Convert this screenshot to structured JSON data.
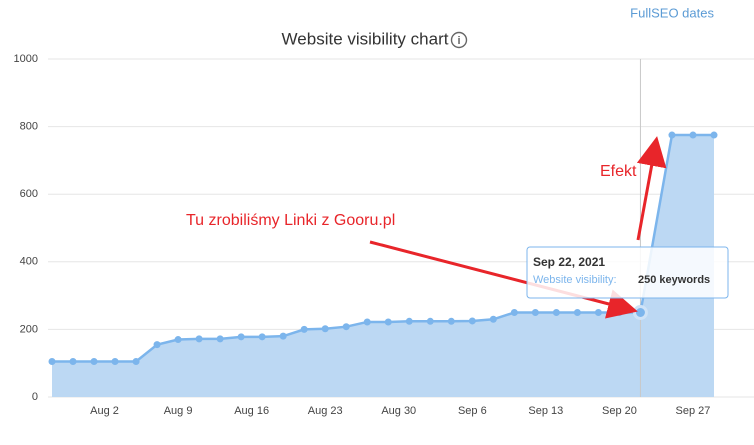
{
  "chart_data": {
    "type": "area",
    "title": "Website visibility chart",
    "link": "FullSEO dates",
    "x": [
      "Jul 28",
      "Jul 30",
      "Aug 1",
      "Aug 3",
      "Aug 5",
      "Aug 7",
      "Aug 9",
      "Aug 11",
      "Aug 13",
      "Aug 15",
      "Aug 17",
      "Aug 19",
      "Aug 21",
      "Aug 23",
      "Aug 25",
      "Aug 27",
      "Aug 29",
      "Aug 31",
      "Sep 2",
      "Sep 4",
      "Sep 6",
      "Sep 8",
      "Sep 10",
      "Sep 12",
      "Sep 14",
      "Sep 16",
      "Sep 18",
      "Sep 20",
      "Sep 22",
      "Sep 25",
      "Sep 27",
      "Sep 29"
    ],
    "series": [
      {
        "name": "Website visibility",
        "color": "#7cb5ec",
        "values": [
          105,
          105,
          105,
          105,
          105,
          155,
          170,
          172,
          172,
          178,
          178,
          180,
          200,
          202,
          208,
          222,
          222,
          224,
          224,
          224,
          225,
          230,
          250,
          250,
          250,
          250,
          250,
          250,
          250,
          775,
          775,
          775
        ]
      }
    ],
    "xlim": [
      "Jul 28",
      "Sep 29"
    ],
    "xticks": [
      "Aug 2",
      "Aug 9",
      "Aug 16",
      "Aug 23",
      "Aug 30",
      "Sep 6",
      "Sep 13",
      "Sep 20",
      "Sep 27"
    ],
    "ylim": [
      0,
      1000
    ],
    "yticks": [
      0,
      200,
      400,
      600,
      800,
      1000
    ],
    "grid": true,
    "tooltip": {
      "date": "Sep 22, 2021",
      "label": "Website visibility:",
      "value_label": "250 keywords",
      "index": 28
    },
    "annotations": [
      "Tu zrobiliśmy Linki z Gooru.pl",
      "Efekt"
    ]
  }
}
